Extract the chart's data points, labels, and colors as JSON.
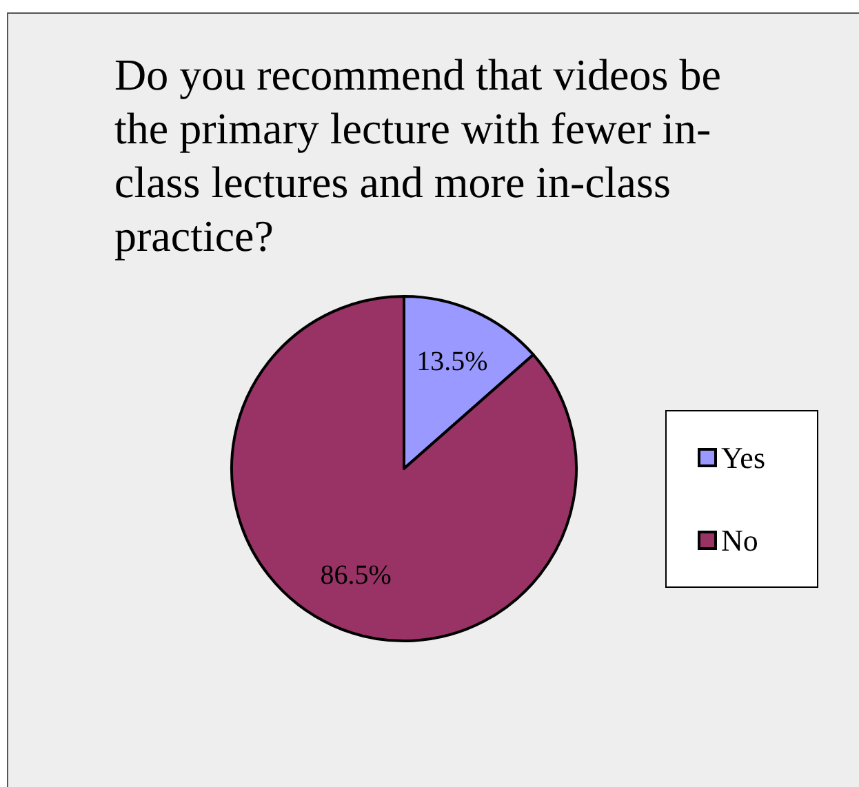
{
  "chart_data": {
    "type": "pie",
    "title": "Do you recommend that videos be the primary lecture with fewer in-class lectures and more in-class practice?",
    "categories": [
      "Yes",
      "No"
    ],
    "values": [
      13.5,
      86.5
    ],
    "colors": [
      "#9999ff",
      "#993366"
    ],
    "value_labels": [
      "13.5%",
      "86.5%"
    ],
    "legend": "right"
  }
}
